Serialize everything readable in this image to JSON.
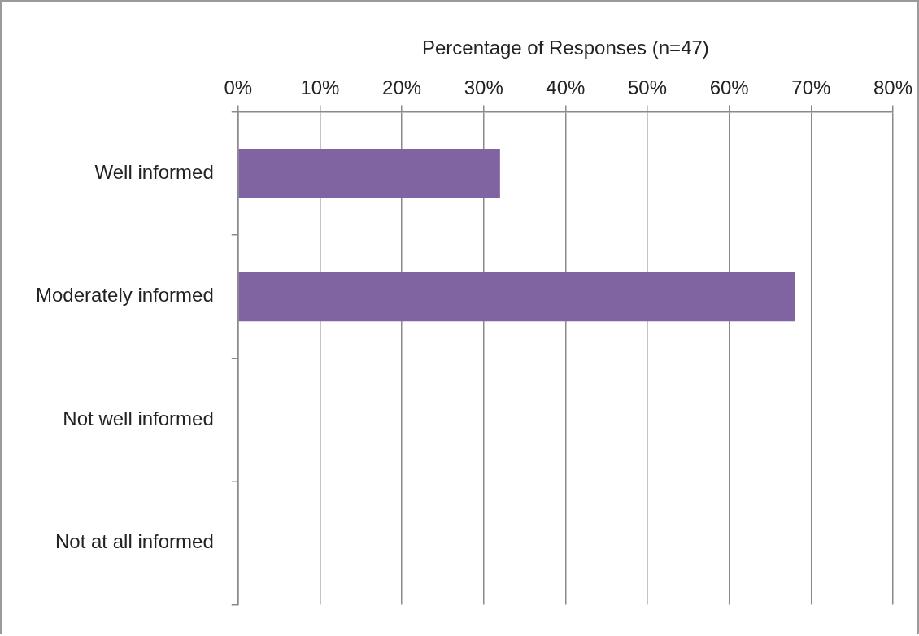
{
  "chart_data": {
    "type": "bar",
    "orientation": "horizontal",
    "xlabel": "Percentage of Responses (n=47)",
    "categories": [
      "Well informed",
      "Moderately informed",
      "Not well informed",
      "Not at all informed"
    ],
    "values": [
      32,
      68,
      0,
      0
    ],
    "color": "#8064a2",
    "xlim": [
      0,
      80
    ],
    "xticks": [
      {
        "value": 0,
        "label": "0%"
      },
      {
        "value": 10,
        "label": "10%"
      },
      {
        "value": 20,
        "label": "20%"
      },
      {
        "value": 30,
        "label": "30%"
      },
      {
        "value": 40,
        "label": "40%"
      },
      {
        "value": 50,
        "label": "50%"
      },
      {
        "value": 60,
        "label": "60%"
      },
      {
        "value": 70,
        "label": "70%"
      },
      {
        "value": 80,
        "label": "80%"
      }
    ],
    "grid": "x",
    "legend": false
  }
}
